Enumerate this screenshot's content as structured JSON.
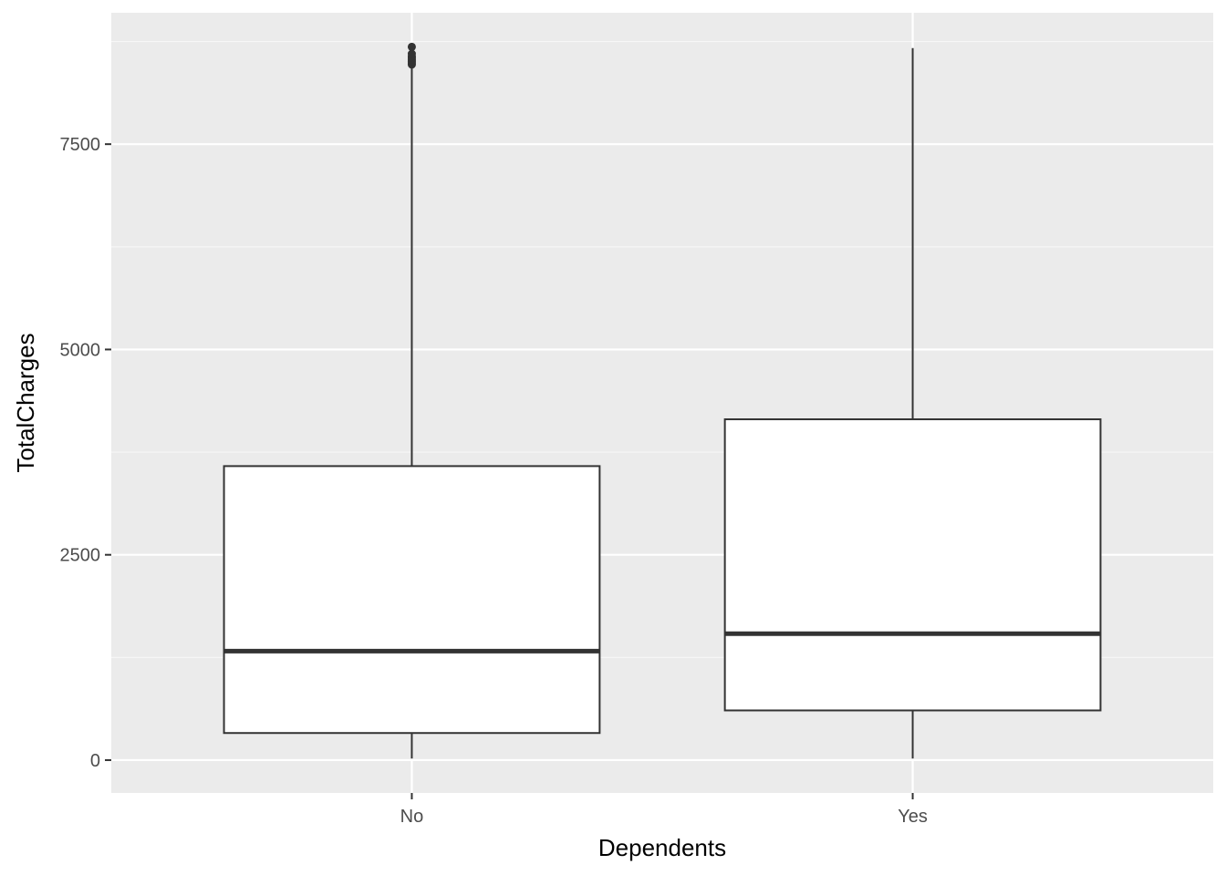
{
  "chart_data": {
    "type": "boxplot",
    "title": "",
    "xlabel": "Dependents",
    "ylabel": "TotalCharges",
    "categories": [
      "No",
      "Yes"
    ],
    "ylim": [
      -400,
      9100
    ],
    "yticks": [
      {
        "value": 0,
        "label": "0"
      },
      {
        "value": 2500,
        "label": "2500"
      },
      {
        "value": 5000,
        "label": "5000"
      },
      {
        "value": 7500,
        "label": "7500"
      }
    ],
    "yminor": [
      1250,
      3750,
      6250,
      8750
    ],
    "boxes": [
      {
        "category": "No",
        "whisker_low": 19,
        "q1": 330,
        "median": 1327,
        "q3": 3580,
        "whisker_high": 8450,
        "outliers": [
          8470,
          8490,
          8510,
          8530,
          8550,
          8570,
          8600,
          8685
        ]
      },
      {
        "category": "Yes",
        "whisker_low": 19,
        "q1": 605,
        "median": 1540,
        "q3": 4150,
        "whisker_high": 8670,
        "outliers": []
      }
    ],
    "grid": true,
    "legend": "none"
  },
  "colors": {
    "panel": "#EBEBEB",
    "grid_major": "#FFFFFF",
    "grid_minor": "#F7F7F7",
    "box_fill": "#FFFFFF",
    "box_stroke": "#333333",
    "tick": "#333333"
  }
}
